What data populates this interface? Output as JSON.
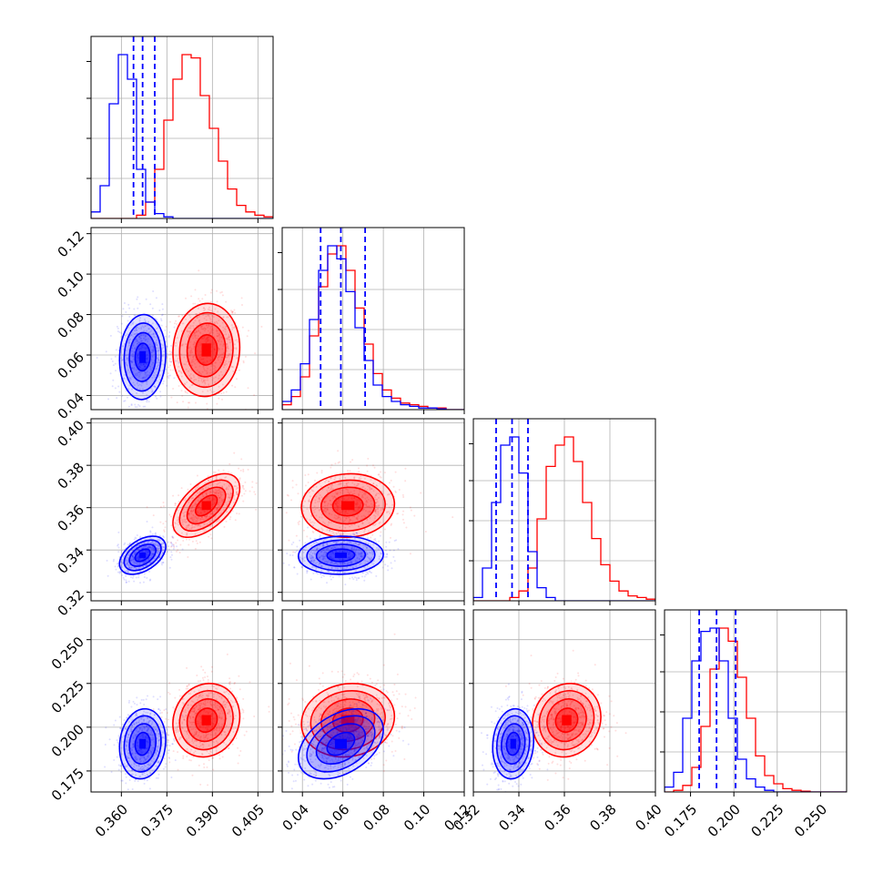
{
  "chart_data": {
    "type": "corner",
    "series": [
      {
        "name": "",
        "color": "#0000ff",
        "mean": [
          0.367,
          0.059,
          0.3375,
          0.1905
        ],
        "sd": [
          0.0038,
          0.0105,
          0.0045,
          0.01
        ],
        "corr": {
          "1-0": 0.05,
          "2-0": 0.45,
          "2-1": 0.05,
          "3-0": 0.1,
          "3-1": 0.4,
          "3-2": 0.1
        }
      },
      {
        "name": "",
        "color": "#ff0000",
        "mean": [
          0.388,
          0.0625,
          0.361,
          0.204
        ],
        "sd": [
          0.0055,
          0.0115,
          0.0075,
          0.0105
        ],
        "corr": {
          "1-0": 0.05,
          "2-0": 0.55,
          "2-1": 0.05,
          "3-0": 0.1,
          "3-1": 0.1,
          "3-2": 0.1
        }
      }
    ],
    "quantile_lines": [
      [
        0.364,
        0.367,
        0.371
      ],
      [
        0.049,
        0.059,
        0.071
      ],
      [
        0.33,
        0.337,
        0.344
      ],
      [
        0.18,
        0.19,
        0.201
      ]
    ],
    "histograms": [
      {
        "bins": [
          0.35,
          0.41
        ],
        "blue": [
          0.04,
          0.2,
          0.7,
          1.0,
          0.85,
          0.3,
          0.1,
          0.03,
          0.01,
          0,
          0,
          0,
          0,
          0,
          0,
          0,
          0,
          0,
          0,
          0
        ],
        "red": [
          0,
          0,
          0,
          0,
          0,
          0.02,
          0.1,
          0.3,
          0.6,
          0.85,
          1.0,
          0.98,
          0.75,
          0.55,
          0.35,
          0.18,
          0.08,
          0.04,
          0.02,
          0.01
        ]
      },
      {
        "bins": [
          0.03,
          0.12
        ],
        "blue": [
          0.05,
          0.12,
          0.28,
          0.55,
          0.85,
          1.0,
          0.92,
          0.72,
          0.5,
          0.3,
          0.15,
          0.08,
          0.05,
          0.03,
          0.02,
          0.01,
          0.01,
          0.005,
          0,
          0
        ],
        "red": [
          0.03,
          0.08,
          0.2,
          0.45,
          0.75,
          0.95,
          1.0,
          0.85,
          0.62,
          0.4,
          0.22,
          0.12,
          0.07,
          0.04,
          0.03,
          0.02,
          0.01,
          0.01,
          0,
          0
        ]
      },
      {
        "bins": [
          0.32,
          0.4
        ],
        "blue": [
          0.02,
          0.2,
          0.6,
          0.95,
          1.0,
          0.78,
          0.3,
          0.08,
          0.02,
          0,
          0,
          0,
          0,
          0,
          0,
          0,
          0,
          0,
          0,
          0
        ],
        "red": [
          0,
          0,
          0,
          0,
          0.02,
          0.06,
          0.2,
          0.5,
          0.82,
          0.95,
          1.0,
          0.85,
          0.6,
          0.38,
          0.22,
          0.12,
          0.06,
          0.03,
          0.02,
          0.01
        ]
      },
      {
        "bins": [
          0.16,
          0.265
        ],
        "blue": [
          0.03,
          0.12,
          0.45,
          0.8,
          0.98,
          1.0,
          0.8,
          0.45,
          0.2,
          0.08,
          0.03,
          0.01,
          0,
          0,
          0,
          0,
          0,
          0,
          0,
          0
        ],
        "red": [
          0,
          0.01,
          0.04,
          0.15,
          0.4,
          0.75,
          1.0,
          0.92,
          0.7,
          0.45,
          0.22,
          0.1,
          0.05,
          0.02,
          0.01,
          0.005,
          0,
          0,
          0,
          0
        ]
      }
    ],
    "axes": {
      "x_ranges": [
        [
          0.35,
          0.41
        ],
        [
          0.03,
          0.12
        ],
        [
          0.32,
          0.4
        ],
        [
          0.16,
          0.265
        ]
      ],
      "y_ranges": [
        null,
        [
          0.033,
          0.123
        ],
        [
          0.316,
          0.402
        ],
        [
          0.163,
          0.267
        ]
      ],
      "x_ticks": [
        [
          "0.360",
          "0.375",
          "0.390",
          "0.405"
        ],
        [
          "0.04",
          "0.06",
          "0.08",
          "0.10",
          "0.12"
        ],
        [
          "0.32",
          "0.34",
          "0.36",
          "0.38",
          "0.40"
        ],
        [
          "0.175",
          "0.200",
          "0.225",
          "0.250"
        ]
      ],
      "y_ticks": [
        [],
        [
          "0.04",
          "0.06",
          "0.08",
          "0.10",
          "0.12"
        ],
        [
          "0.32",
          "0.34",
          "0.36",
          "0.38",
          "0.40"
        ],
        [
          "0.175",
          "0.200",
          "0.225",
          "0.250"
        ]
      ]
    },
    "grid": true,
    "title": "",
    "xlabel": "",
    "ylabel": ""
  }
}
